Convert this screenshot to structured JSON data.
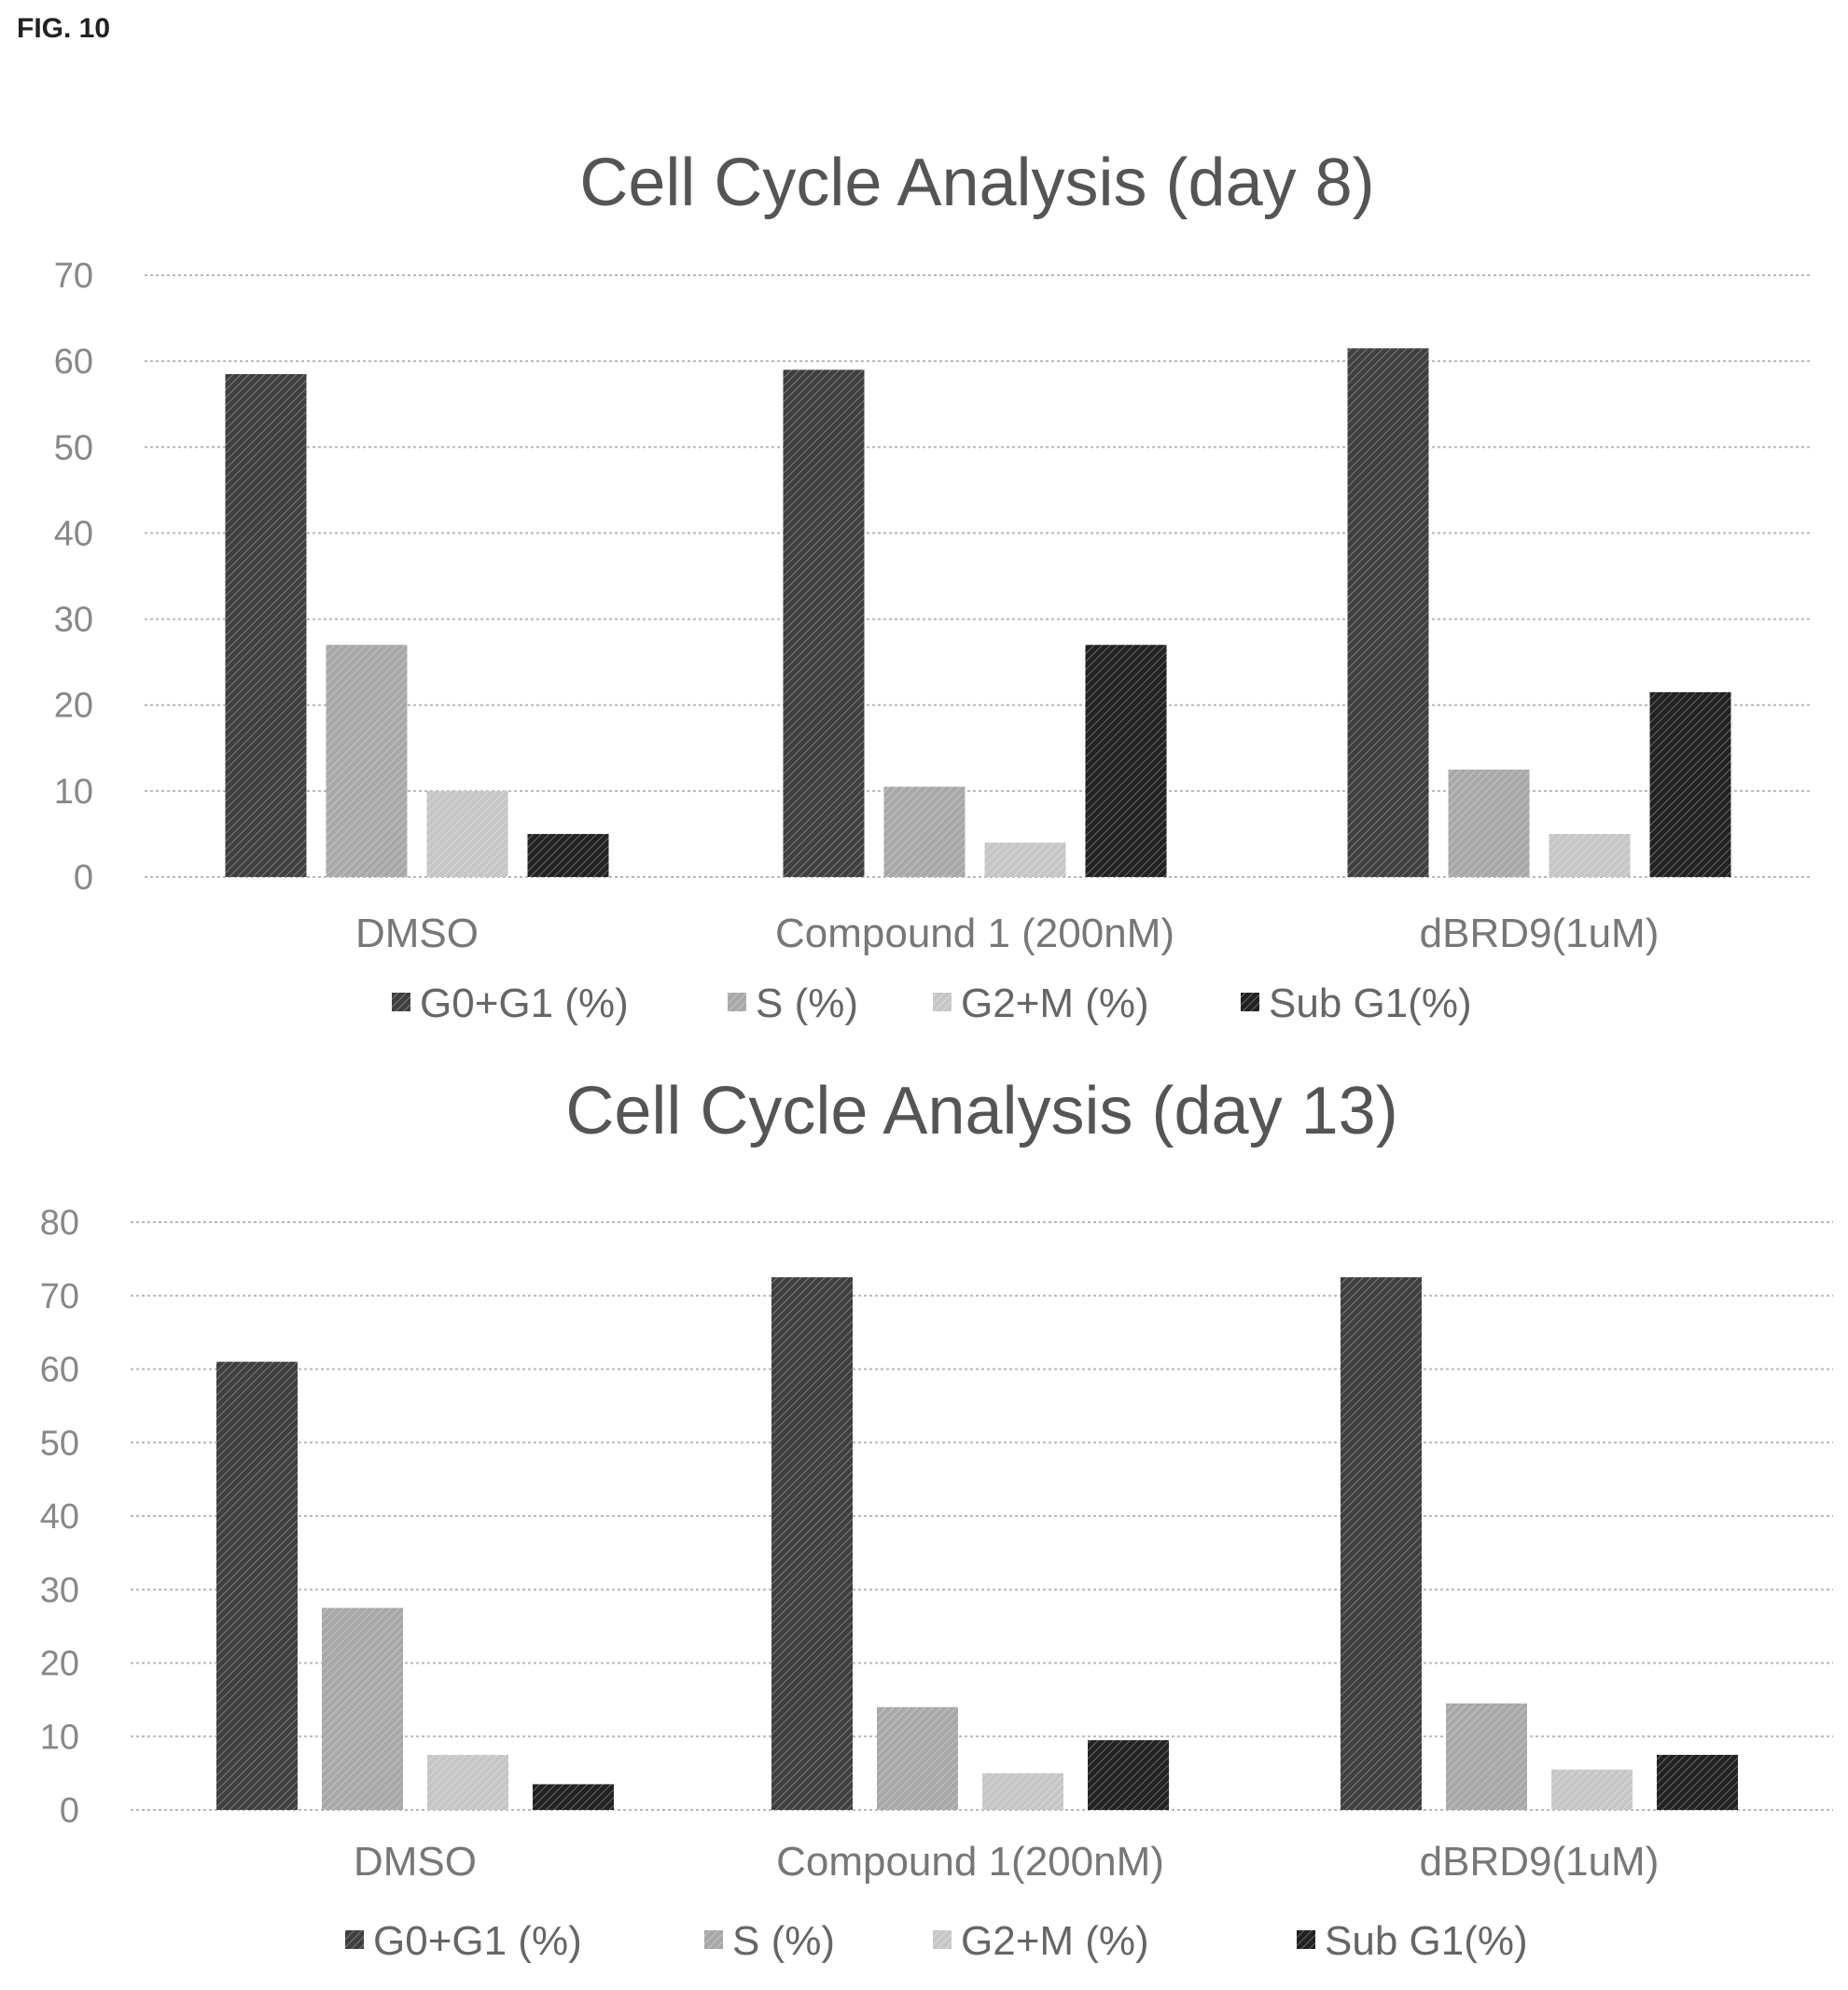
{
  "figure_label": "FIG. 10",
  "chart_data": [
    {
      "type": "bar",
      "title": "Cell Cycle Analysis (day 8)",
      "categories": [
        "DMSO",
        "Compound 1 (200nM)",
        "dBRD9(1uM)"
      ],
      "ylim": [
        0,
        70
      ],
      "yticks": [
        0,
        10,
        20,
        30,
        40,
        50,
        60,
        70
      ],
      "grid": true,
      "legend_position": "bottom",
      "series": [
        {
          "name": "G0+G1 (%)",
          "values": [
            58.5,
            59,
            61.5
          ],
          "color": "#3f3f3f"
        },
        {
          "name": "S (%)",
          "values": [
            27,
            10.5,
            12.5
          ],
          "color": "#a8a8a8"
        },
        {
          "name": "G2+M (%)",
          "values": [
            10,
            4,
            5
          ],
          "color": "#c6c6c6"
        },
        {
          "name": "Sub G1(%)",
          "values": [
            5,
            27,
            21.5
          ],
          "color": "#222222"
        }
      ]
    },
    {
      "type": "bar",
      "title": "Cell Cycle Analysis (day 13)",
      "categories": [
        "DMSO",
        "Compound 1(200nM)",
        "dBRD9(1uM)"
      ],
      "ylim": [
        0,
        80
      ],
      "yticks": [
        0,
        10,
        20,
        30,
        40,
        50,
        60,
        70,
        80
      ],
      "grid": true,
      "legend_position": "bottom",
      "series": [
        {
          "name": "G0+G1 (%)",
          "values": [
            61,
            72.5,
            72.5
          ],
          "color": "#3f3f3f"
        },
        {
          "name": "S (%)",
          "values": [
            27.5,
            14,
            14.5
          ],
          "color": "#a8a8a8"
        },
        {
          "name": "G2+M (%)",
          "values": [
            7.5,
            5,
            5.5
          ],
          "color": "#c6c6c6"
        },
        {
          "name": "Sub G1(%)",
          "values": [
            3.5,
            9.5,
            7.5
          ],
          "color": "#222222"
        }
      ]
    }
  ]
}
